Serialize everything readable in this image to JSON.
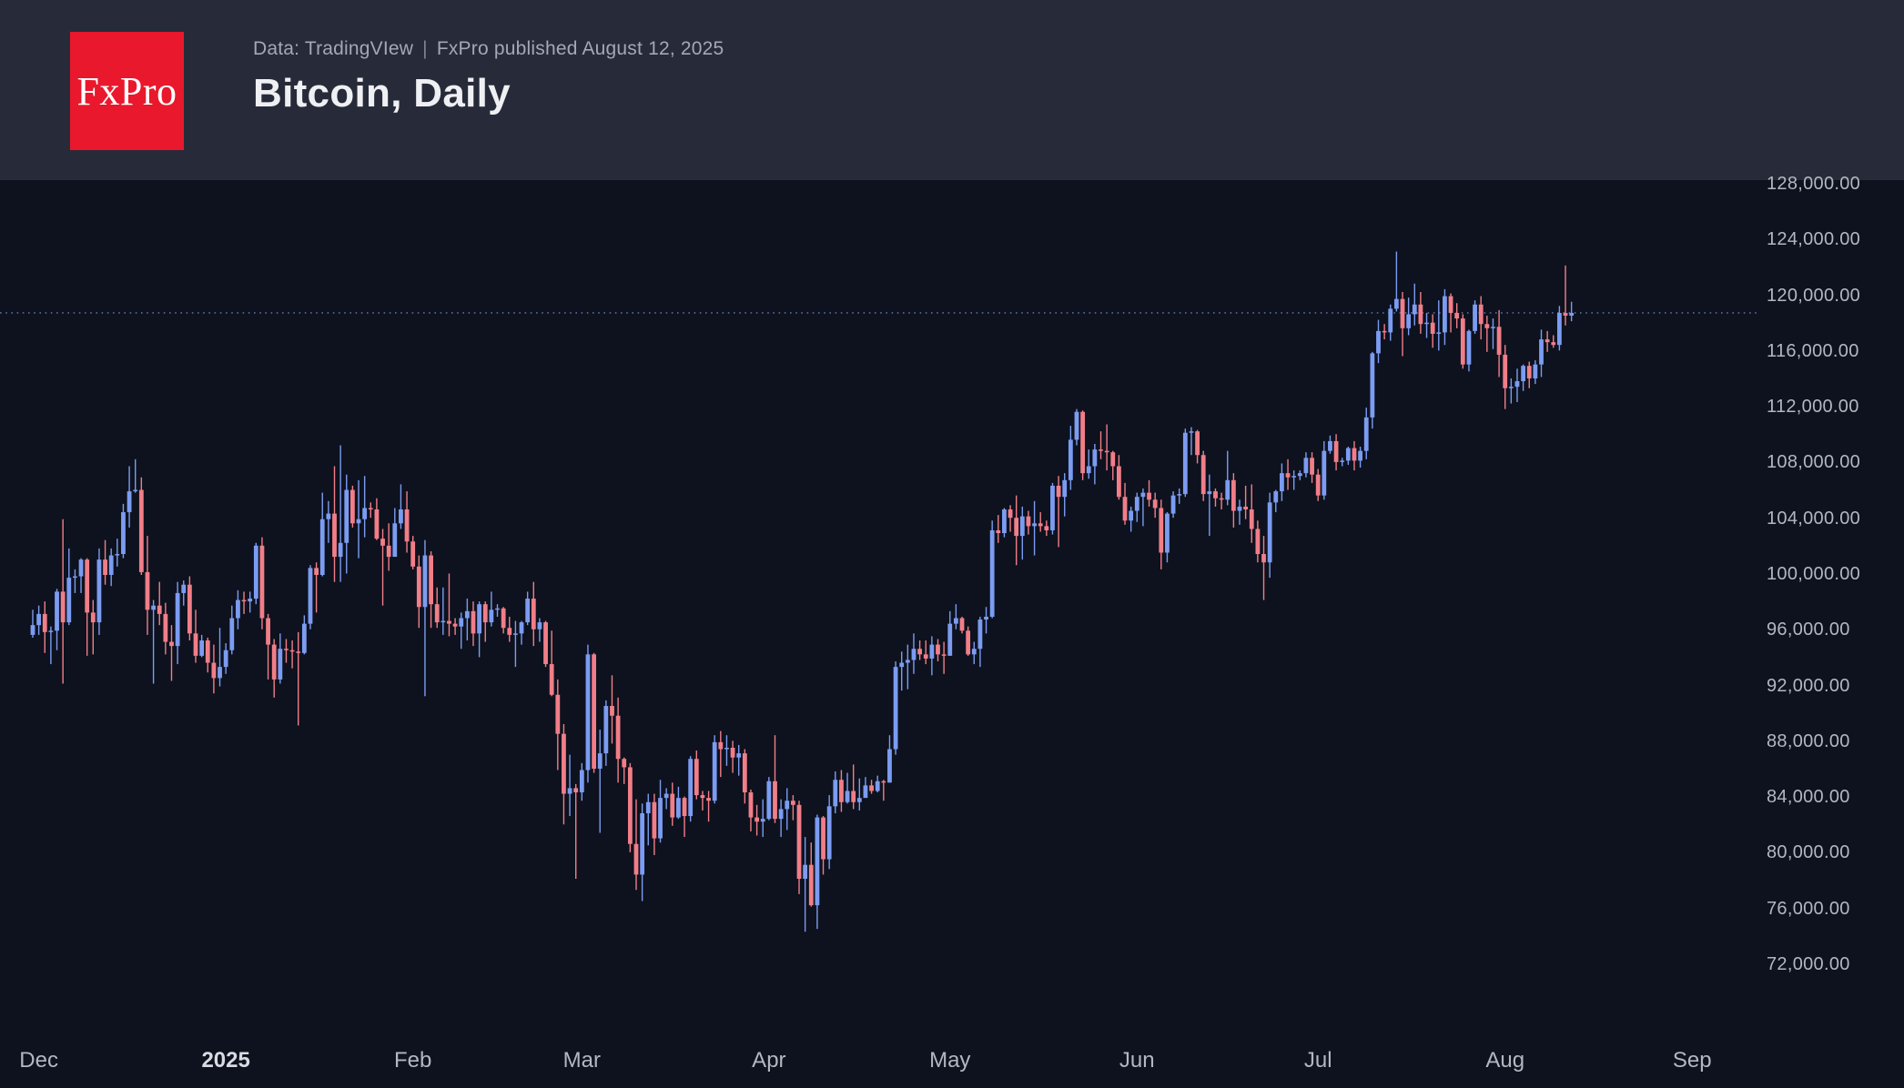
{
  "header": {
    "logo_text": "FxPro",
    "source_line": "Data: TradingVIew",
    "separator": "|",
    "published_line": "FxPro published August 12, 2025",
    "title": "Bitcoin, Daily"
  },
  "colors": {
    "page_background": "#0D121E",
    "header_background": "#272B39",
    "logo_red": "#E9182C",
    "candle_up": "#7C9CF2",
    "candle_down": "#F17E88",
    "last_price_line": "#5A6BA6",
    "axis_text": "#B3B7C1"
  },
  "chart_data": {
    "type": "candlestick",
    "title": "Bitcoin, Daily",
    "instrument": "Bitcoin",
    "timeframe": "Daily",
    "units": "USD, candle values stored in thousands",
    "start_date": "2024-11-30",
    "end_date": "2025-08-12",
    "grid": "off",
    "y_axis": {
      "min": 72000,
      "max": 128000,
      "tick_step": 4000,
      "tick_labels": [
        "128,000.00",
        "124,000.00",
        "120,000.00",
        "116,000.00",
        "112,000.00",
        "108,000.00",
        "104,000.00",
        "100,000.00",
        "96,000.00",
        "92,000.00",
        "88,000.00",
        "84,000.00",
        "80,000.00",
        "76,000.00",
        "72,000.00"
      ],
      "side": "right"
    },
    "x_axis": {
      "tick_labels": [
        {
          "label": "Dec",
          "candle_index": 1,
          "bold": false
        },
        {
          "label": "2025",
          "candle_index": 32,
          "bold": true
        },
        {
          "label": "Feb",
          "candle_index": 63,
          "bold": false
        },
        {
          "label": "Mar",
          "candle_index": 91,
          "bold": false
        },
        {
          "label": "Apr",
          "candle_index": 122,
          "bold": false
        },
        {
          "label": "May",
          "candle_index": 152,
          "bold": false
        },
        {
          "label": "Jun",
          "candle_index": 183,
          "bold": false
        },
        {
          "label": "Jul",
          "candle_index": 213,
          "bold": false
        },
        {
          "label": "Aug",
          "candle_index": 244,
          "bold": false
        },
        {
          "label": "Sep",
          "candle_index": 275,
          "bold": false
        }
      ]
    },
    "last_price_line_value": 118800,
    "open_rule": "each candle opens at the previous candle close",
    "first_open_thousands": 95.7,
    "candles_hlc_thousands": [
      [
        97.5,
        95.5,
        96.4
      ],
      [
        97.8,
        95.7,
        97.2
      ],
      [
        98.1,
        94.4,
        95.9
      ],
      [
        96.3,
        93.6,
        96.0
      ],
      [
        99.0,
        94.6,
        98.8
      ],
      [
        104.0,
        92.2,
        96.6
      ],
      [
        101.9,
        96.4,
        99.8
      ],
      [
        100.4,
        98.7,
        99.9
      ],
      [
        101.2,
        98.7,
        101.1
      ],
      [
        101.2,
        94.2,
        97.3
      ],
      [
        98.2,
        94.3,
        96.6
      ],
      [
        101.9,
        95.7,
        101.1
      ],
      [
        102.5,
        99.3,
        100.0
      ],
      [
        101.9,
        99.2,
        101.4
      ],
      [
        102.6,
        100.6,
        101.5
      ],
      [
        105.1,
        101.2,
        104.5
      ],
      [
        107.8,
        103.4,
        106.0
      ],
      [
        108.3,
        105.9,
        106.1
      ],
      [
        107.0,
        100.0,
        100.2
      ],
      [
        102.8,
        95.7,
        97.5
      ],
      [
        98.2,
        92.2,
        97.8
      ],
      [
        99.5,
        96.4,
        97.2
      ],
      [
        98.0,
        94.3,
        95.2
      ],
      [
        96.4,
        92.4,
        94.9
      ],
      [
        99.5,
        93.6,
        98.7
      ],
      [
        99.6,
        97.8,
        99.3
      ],
      [
        99.9,
        95.3,
        95.8
      ],
      [
        97.5,
        93.7,
        94.2
      ],
      [
        95.7,
        94.1,
        95.3
      ],
      [
        95.5,
        93.0,
        93.7
      ],
      [
        95.0,
        91.5,
        92.6
      ],
      [
        96.2,
        92.0,
        93.4
      ],
      [
        95.1,
        92.9,
        94.6
      ],
      [
        97.8,
        94.3,
        96.9
      ],
      [
        98.9,
        96.1,
        98.2
      ],
      [
        98.8,
        97.2,
        98.1
      ],
      [
        98.8,
        97.3,
        98.3
      ],
      [
        102.3,
        97.9,
        102.1
      ],
      [
        102.7,
        96.1,
        96.9
      ],
      [
        97.2,
        92.5,
        95.0
      ],
      [
        95.4,
        91.2,
        92.5
      ],
      [
        95.8,
        92.2,
        94.7
      ],
      [
        95.4,
        93.7,
        94.6
      ],
      [
        95.3,
        93.3,
        94.5
      ],
      [
        95.9,
        89.2,
        94.4
      ],
      [
        97.1,
        94.3,
        96.5
      ],
      [
        100.7,
        96.1,
        100.5
      ],
      [
        100.9,
        97.3,
        100.0
      ],
      [
        105.9,
        99.9,
        104.0
      ],
      [
        105.3,
        102.3,
        104.4
      ],
      [
        107.8,
        99.5,
        101.3
      ],
      [
        109.3,
        99.5,
        102.3
      ],
      [
        107.2,
        100.1,
        106.1
      ],
      [
        106.4,
        103.4,
        103.7
      ],
      [
        106.8,
        101.2,
        104.0
      ],
      [
        107.1,
        102.7,
        104.8
      ],
      [
        105.2,
        104.1,
        104.7
      ],
      [
        105.5,
        102.5,
        102.6
      ],
      [
        103.3,
        97.8,
        102.1
      ],
      [
        103.7,
        100.3,
        101.3
      ],
      [
        104.8,
        101.4,
        103.7
      ],
      [
        106.5,
        103.3,
        104.7
      ],
      [
        106.0,
        101.6,
        102.4
      ],
      [
        102.8,
        100.4,
        100.6
      ],
      [
        101.4,
        96.2,
        97.7
      ],
      [
        102.5,
        91.3,
        101.4
      ],
      [
        101.7,
        96.2,
        97.9
      ],
      [
        99.1,
        96.2,
        96.6
      ],
      [
        99.1,
        95.7,
        96.7
      ],
      [
        100.1,
        95.6,
        96.5
      ],
      [
        96.9,
        95.7,
        96.3
      ],
      [
        97.3,
        94.7,
        96.9
      ],
      [
        98.3,
        95.3,
        97.4
      ],
      [
        98.1,
        94.9,
        95.8
      ],
      [
        98.1,
        94.1,
        97.9
      ],
      [
        98.1,
        95.2,
        96.6
      ],
      [
        98.8,
        96.3,
        97.5
      ],
      [
        97.9,
        97.0,
        97.6
      ],
      [
        97.7,
        95.8,
        96.2
      ],
      [
        97.0,
        95.2,
        95.7
      ],
      [
        96.7,
        93.4,
        95.8
      ],
      [
        96.7,
        95.0,
        96.6
      ],
      [
        98.8,
        96.4,
        98.3
      ],
      [
        99.5,
        94.9,
        96.1
      ],
      [
        96.9,
        95.2,
        96.6
      ],
      [
        96.7,
        93.4,
        93.6
      ],
      [
        96.0,
        91.3,
        91.4
      ],
      [
        92.5,
        86.0,
        88.6
      ],
      [
        89.3,
        82.1,
        84.3
      ],
      [
        87.1,
        82.7,
        84.7
      ],
      [
        85.0,
        78.2,
        84.4
      ],
      [
        86.5,
        83.8,
        86.0
      ],
      [
        95.0,
        85.1,
        94.3
      ],
      [
        94.4,
        85.8,
        86.1
      ],
      [
        88.9,
        81.5,
        87.2
      ],
      [
        91.0,
        86.3,
        90.6
      ],
      [
        92.8,
        87.9,
        89.9
      ],
      [
        91.2,
        85.1,
        86.8
      ],
      [
        86.9,
        85.0,
        86.2
      ],
      [
        86.5,
        80.1,
        80.7
      ],
      [
        83.9,
        77.4,
        78.5
      ],
      [
        83.6,
        76.6,
        82.9
      ],
      [
        84.3,
        80.6,
        83.7
      ],
      [
        84.3,
        79.9,
        81.1
      ],
      [
        85.3,
        80.8,
        84.0
      ],
      [
        84.7,
        83.2,
        84.3
      ],
      [
        85.1,
        82.0,
        82.6
      ],
      [
        84.8,
        82.5,
        84.0
      ],
      [
        84.1,
        81.2,
        82.7
      ],
      [
        87.0,
        82.3,
        86.8
      ],
      [
        87.4,
        83.9,
        84.2
      ],
      [
        84.5,
        83.1,
        84.0
      ],
      [
        84.5,
        82.3,
        83.8
      ],
      [
        88.5,
        83.6,
        88.0
      ],
      [
        88.8,
        85.5,
        87.5
      ],
      [
        88.5,
        86.3,
        87.6
      ],
      [
        88.1,
        85.8,
        86.9
      ],
      [
        87.8,
        85.6,
        87.2
      ],
      [
        87.5,
        83.6,
        84.4
      ],
      [
        84.6,
        81.6,
        82.6
      ],
      [
        83.5,
        81.3,
        82.3
      ],
      [
        83.9,
        81.2,
        82.5
      ],
      [
        85.5,
        82.4,
        85.2
      ],
      [
        88.5,
        82.2,
        82.5
      ],
      [
        83.9,
        81.2,
        83.2
      ],
      [
        84.7,
        81.7,
        83.8
      ],
      [
        84.2,
        82.4,
        83.5
      ],
      [
        83.8,
        77.1,
        78.2
      ],
      [
        81.2,
        74.4,
        79.2
      ],
      [
        80.8,
        76.2,
        76.3
      ],
      [
        82.8,
        74.6,
        82.6
      ],
      [
        82.7,
        78.5,
        79.6
      ],
      [
        84.2,
        78.9,
        83.4
      ],
      [
        85.9,
        82.9,
        85.3
      ],
      [
        86.0,
        83.0,
        83.7
      ],
      [
        85.8,
        83.6,
        84.5
      ],
      [
        86.4,
        83.2,
        83.7
      ],
      [
        85.4,
        83.1,
        84.0
      ],
      [
        85.5,
        84.3,
        84.9
      ],
      [
        85.3,
        84.3,
        84.5
      ],
      [
        85.6,
        84.4,
        85.2
      ],
      [
        85.3,
        83.8,
        85.1
      ],
      [
        88.5,
        85.1,
        87.5
      ],
      [
        93.8,
        87.1,
        93.4
      ],
      [
        94.5,
        91.7,
        93.7
      ],
      [
        95.0,
        91.8,
        93.9
      ],
      [
        95.8,
        92.9,
        94.7
      ],
      [
        95.3,
        93.9,
        94.3
      ],
      [
        95.3,
        93.6,
        94.0
      ],
      [
        95.6,
        92.8,
        95.0
      ],
      [
        95.4,
        93.8,
        94.3
      ],
      [
        95.2,
        92.9,
        94.2
      ],
      [
        97.4,
        94.2,
        96.5
      ],
      [
        97.9,
        96.1,
        96.9
      ],
      [
        97.0,
        95.8,
        96.0
      ],
      [
        96.3,
        94.2,
        94.3
      ],
      [
        95.2,
        93.6,
        94.7
      ],
      [
        97.0,
        93.4,
        96.8
      ],
      [
        97.7,
        95.8,
        97.0
      ],
      [
        103.9,
        96.9,
        103.2
      ],
      [
        104.3,
        102.3,
        103.0
      ],
      [
        104.8,
        102.7,
        104.7
      ],
      [
        105.0,
        103.1,
        104.1
      ],
      [
        105.7,
        100.7,
        102.8
      ],
      [
        104.9,
        101.1,
        104.2
      ],
      [
        104.6,
        102.9,
        103.5
      ],
      [
        105.3,
        101.4,
        103.7
      ],
      [
        104.5,
        103.1,
        103.5
      ],
      [
        103.9,
        102.8,
        103.2
      ],
      [
        106.6,
        102.9,
        106.4
      ],
      [
        107.1,
        102.0,
        105.6
      ],
      [
        107.3,
        104.2,
        106.8
      ],
      [
        110.7,
        106.1,
        109.7
      ],
      [
        111.9,
        109.3,
        111.7
      ],
      [
        111.8,
        106.8,
        107.3
      ],
      [
        109.0,
        106.9,
        107.8
      ],
      [
        109.4,
        106.5,
        109.0
      ],
      [
        110.3,
        108.3,
        108.9
      ],
      [
        110.8,
        107.5,
        108.8
      ],
      [
        108.9,
        106.8,
        107.8
      ],
      [
        108.6,
        105.4,
        105.6
      ],
      [
        106.6,
        103.6,
        103.9
      ],
      [
        104.9,
        103.1,
        104.6
      ],
      [
        105.9,
        103.8,
        105.6
      ],
      [
        106.2,
        103.5,
        105.9
      ],
      [
        106.8,
        104.9,
        105.4
      ],
      [
        105.9,
        104.1,
        104.8
      ],
      [
        105.4,
        100.4,
        101.6
      ],
      [
        104.5,
        100.9,
        104.4
      ],
      [
        106.0,
        104.1,
        105.7
      ],
      [
        106.2,
        105.1,
        105.8
      ],
      [
        110.5,
        105.6,
        110.2
      ],
      [
        110.6,
        108.6,
        110.3
      ],
      [
        110.4,
        108.0,
        108.6
      ],
      [
        108.9,
        105.3,
        105.8
      ],
      [
        107.2,
        102.8,
        106.0
      ],
      [
        106.2,
        104.9,
        105.5
      ],
      [
        105.9,
        104.7,
        105.4
      ],
      [
        108.9,
        105.0,
        106.8
      ],
      [
        107.3,
        103.4,
        104.6
      ],
      [
        105.4,
        103.6,
        104.9
      ],
      [
        106.4,
        104.0,
        104.7
      ],
      [
        106.5,
        102.3,
        103.3
      ],
      [
        103.9,
        100.9,
        101.5
      ],
      [
        102.8,
        98.2,
        100.9
      ],
      [
        105.9,
        99.8,
        105.2
      ],
      [
        106.1,
        104.5,
        106.0
      ],
      [
        108.0,
        105.3,
        107.3
      ],
      [
        108.3,
        106.1,
        107.0
      ],
      [
        107.5,
        106.1,
        107.1
      ],
      [
        107.5,
        106.8,
        107.3
      ],
      [
        108.8,
        107.0,
        108.4
      ],
      [
        108.8,
        106.6,
        107.2
      ],
      [
        107.6,
        105.3,
        105.7
      ],
      [
        109.6,
        105.4,
        108.9
      ],
      [
        110.0,
        108.7,
        109.6
      ],
      [
        110.1,
        107.5,
        108.1
      ],
      [
        108.4,
        107.8,
        108.2
      ],
      [
        109.2,
        107.9,
        109.1
      ],
      [
        109.6,
        107.5,
        108.2
      ],
      [
        109.2,
        107.7,
        108.9
      ],
      [
        112.0,
        108.3,
        111.3
      ],
      [
        116.0,
        110.5,
        115.9
      ],
      [
        118.3,
        115.2,
        117.5
      ],
      [
        118.0,
        116.9,
        117.4
      ],
      [
        119.4,
        116.8,
        119.1
      ],
      [
        123.2,
        118.9,
        119.8
      ],
      [
        120.3,
        115.7,
        117.7
      ],
      [
        119.9,
        117.2,
        118.7
      ],
      [
        120.9,
        117.9,
        119.4
      ],
      [
        120.3,
        117.3,
        118.0
      ],
      [
        118.8,
        117.0,
        118.1
      ],
      [
        118.7,
        116.3,
        117.3
      ],
      [
        119.7,
        116.1,
        117.4
      ],
      [
        120.5,
        116.5,
        120.0
      ],
      [
        120.2,
        117.4,
        118.8
      ],
      [
        119.5,
        117.7,
        118.4
      ],
      [
        118.7,
        114.8,
        115.1
      ],
      [
        117.6,
        114.6,
        117.5
      ],
      [
        119.7,
        117.3,
        119.4
      ],
      [
        120.0,
        116.9,
        118.0
      ],
      [
        118.6,
        116.0,
        117.7
      ],
      [
        118.4,
        116.2,
        117.8
      ],
      [
        119.0,
        114.2,
        115.8
      ],
      [
        116.5,
        111.9,
        113.4
      ],
      [
        114.1,
        112.3,
        113.5
      ],
      [
        114.8,
        112.4,
        113.9
      ],
      [
        115.1,
        113.2,
        115.0
      ],
      [
        115.3,
        113.4,
        114.1
      ],
      [
        115.4,
        113.7,
        115.1
      ],
      [
        117.6,
        114.2,
        116.9
      ],
      [
        117.5,
        116.0,
        116.7
      ],
      [
        117.2,
        116.3,
        116.5
      ],
      [
        119.3,
        116.1,
        118.8
      ],
      [
        122.2,
        117.9,
        118.6
      ],
      [
        119.6,
        118.2,
        118.8
      ]
    ]
  }
}
